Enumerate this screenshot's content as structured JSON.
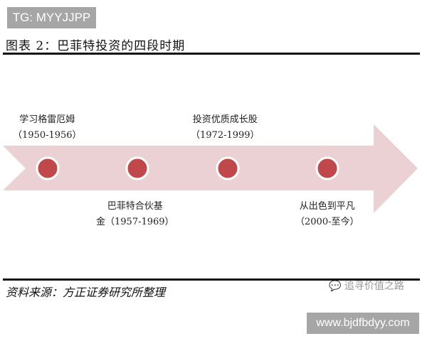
{
  "watermarks": {
    "top_left": "TG: MYYJJPP",
    "bottom_right": "www.bjdfbdyy.com"
  },
  "title": "图表 2：巴菲特投资的四段时期",
  "colors": {
    "arrow": "#ecd1d4",
    "milestone": "#c0484b"
  },
  "stages": [
    {
      "name": "学习格雷厄姆",
      "period": "（1950-1956）"
    },
    {
      "name": "巴菲特合伙基",
      "period": "金（1957-1969）"
    },
    {
      "name": "投资优质成长股",
      "period": "（1972-1999）"
    },
    {
      "name": "从出色到平凡",
      "period": "（2000-至今）"
    }
  ],
  "source": "资料来源：方正证券研究所整理",
  "wechat": {
    "icon": "wechat-icon",
    "label": "追寻价值之路"
  }
}
